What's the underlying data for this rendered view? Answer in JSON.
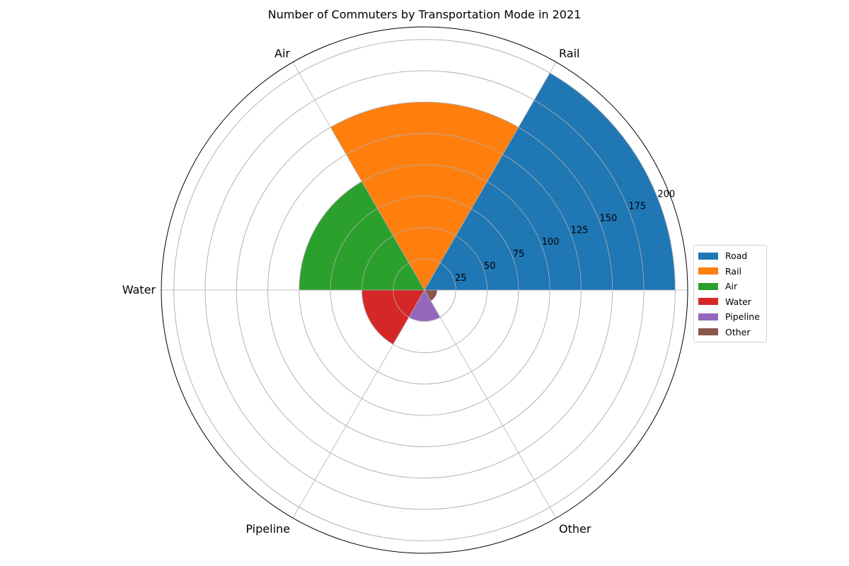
{
  "chart_data": {
    "type": "bar",
    "subtype": "polar",
    "title": "Number of Commuters by Transportation Mode in 2021",
    "categories": [
      "Road",
      "Rail",
      "Air",
      "Water",
      "Pipeline",
      "Other"
    ],
    "values": [
      200,
      150,
      100,
      50,
      25,
      10
    ],
    "colors": [
      "#1f77b4",
      "#ff7f0e",
      "#2ca02c",
      "#d62728",
      "#9467bd",
      "#8c564b"
    ],
    "radial_ticks": [
      25,
      50,
      75,
      100,
      125,
      150,
      175,
      200
    ],
    "rlim": [
      0,
      210
    ],
    "grid": true,
    "legend_position": "right",
    "legend": [
      "Road",
      "Rail",
      "Air",
      "Water",
      "Pipeline",
      "Other"
    ]
  }
}
